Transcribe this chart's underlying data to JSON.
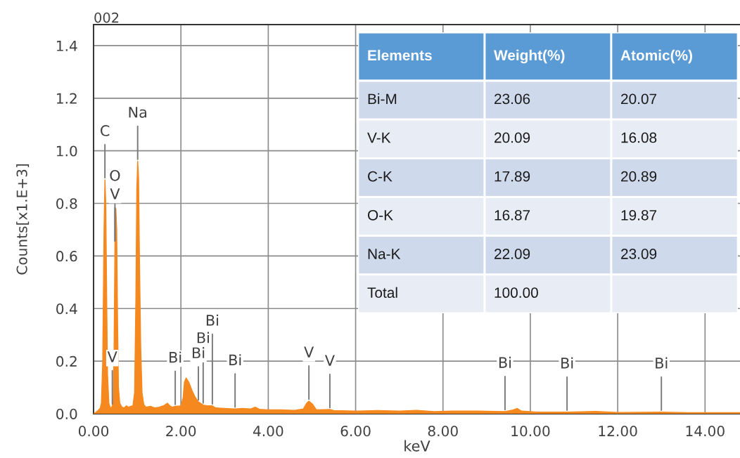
{
  "chart_data": [
    {
      "type": "area",
      "title": "002",
      "xlabel": "keV",
      "ylabel": "Counts[x1.E+3]",
      "color": "#f5891f",
      "x": [
        0.0,
        0.05,
        0.1,
        0.15,
        0.18,
        0.21,
        0.24,
        0.26,
        0.28,
        0.3,
        0.32,
        0.35,
        0.38,
        0.4,
        0.43,
        0.45,
        0.47,
        0.49,
        0.51,
        0.53,
        0.55,
        0.57,
        0.6,
        0.65,
        0.7,
        0.75,
        0.8,
        0.85,
        0.9,
        0.94,
        0.97,
        0.99,
        1.01,
        1.03,
        1.05,
        1.08,
        1.11,
        1.15,
        1.2,
        1.3,
        1.4,
        1.5,
        1.6,
        1.69,
        1.75,
        1.8,
        1.87,
        2.0,
        2.05,
        2.08,
        2.12,
        2.18,
        2.25,
        2.32,
        2.4,
        2.51,
        2.6,
        2.72,
        2.8,
        3.0,
        3.24,
        3.4,
        3.6,
        3.7,
        3.8,
        4.0,
        4.3,
        4.6,
        4.8,
        4.88,
        4.93,
        5.02,
        5.1,
        5.41,
        5.5,
        6.0,
        6.5,
        7.0,
        7.4,
        7.8,
        8.2,
        8.8,
        9.42,
        9.6,
        9.7,
        9.8,
        10.2,
        10.84,
        11.5,
        12.0,
        13.0,
        13.6,
        14.0,
        14.8
      ],
      "values": [
        0.0,
        0.005,
        0.012,
        0.02,
        0.04,
        0.2,
        0.7,
        0.89,
        0.8,
        0.45,
        0.15,
        0.04,
        0.025,
        0.02,
        0.03,
        0.05,
        0.25,
        0.65,
        0.78,
        0.7,
        0.35,
        0.1,
        0.04,
        0.025,
        0.022,
        0.03,
        0.025,
        0.028,
        0.03,
        0.08,
        0.45,
        0.85,
        0.96,
        0.9,
        0.6,
        0.25,
        0.08,
        0.035,
        0.025,
        0.028,
        0.022,
        0.025,
        0.03,
        0.04,
        0.03,
        0.025,
        0.028,
        0.03,
        0.06,
        0.12,
        0.136,
        0.12,
        0.09,
        0.065,
        0.045,
        0.033,
        0.03,
        0.03,
        0.022,
        0.02,
        0.018,
        0.02,
        0.018,
        0.025,
        0.017,
        0.015,
        0.015,
        0.013,
        0.018,
        0.04,
        0.048,
        0.035,
        0.015,
        0.016,
        0.012,
        0.01,
        0.012,
        0.01,
        0.013,
        0.008,
        0.01,
        0.01,
        0.008,
        0.014,
        0.02,
        0.01,
        0.006,
        0.006,
        0.009,
        0.005,
        0.006,
        0.004,
        0.004,
        0.004
      ],
      "xlim": [
        0,
        14.8
      ],
      "ylim": [
        0,
        1.48
      ],
      "xticks": [
        {
          "value": 0,
          "label": "0.00"
        },
        {
          "value": 2,
          "label": "2.00"
        },
        {
          "value": 4,
          "label": "4.00"
        },
        {
          "value": 6,
          "label": "6.00"
        },
        {
          "value": 8,
          "label": "8.00"
        },
        {
          "value": 10,
          "label": "10.00"
        },
        {
          "value": 12,
          "label": "12.00"
        },
        {
          "value": 14,
          "label": "14.00"
        }
      ],
      "yticks": [
        {
          "value": 0,
          "label": "0.0"
        },
        0.2,
        0.4,
        0.6,
        0.8,
        {
          "value": 1,
          "label": "1.0"
        },
        1.2,
        1.4
      ],
      "grid": true,
      "annotations": [
        {
          "text": "C",
          "x": 0.26,
          "y": 0.89
        },
        {
          "text": "V",
          "x": 0.43,
          "y": 0.03
        },
        {
          "text": "V",
          "x": 0.49,
          "y": 0.65
        },
        {
          "text": "O",
          "x": 0.49,
          "y": 0.65
        },
        {
          "text": "Na",
          "x": 1.01,
          "y": 0.96
        },
        {
          "text": "Bi",
          "x": 1.87,
          "y": 0.028
        },
        {
          "text": "Bi",
          "x": 2.4,
          "y": 0.045
        },
        {
          "text": "Bi",
          "x": 2.51,
          "y": 0.033
        },
        {
          "text": "Bi",
          "x": 2.72,
          "y": 0.03
        },
        {
          "text": "Bi",
          "x": 3.24,
          "y": 0.018
        },
        {
          "text": "V",
          "x": 4.93,
          "y": 0.048
        },
        {
          "text": "V",
          "x": 5.41,
          "y": 0.016
        },
        {
          "text": "Bi",
          "x": 9.42,
          "y": 0.008
        },
        {
          "text": "Bi",
          "x": 10.84,
          "y": 0.006
        },
        {
          "text": "Bi",
          "x": 13.0,
          "y": 0.006
        }
      ]
    },
    {
      "type": "other",
      "categories": [
        "Elements",
        "Weight(%)",
        "Atomic(%)"
      ],
      "cell_labels": [
        [
          "Bi-M",
          "23.06",
          "20.07"
        ],
        [
          "V-K",
          "20.09",
          "16.08"
        ],
        [
          "C-K",
          "17.89",
          "20.89"
        ],
        [
          "O-K",
          "16.87",
          "19.87"
        ],
        [
          "Na-K",
          "22.09",
          "23.09"
        ],
        [
          "Total",
          "100.00",
          null
        ]
      ]
    }
  ]
}
